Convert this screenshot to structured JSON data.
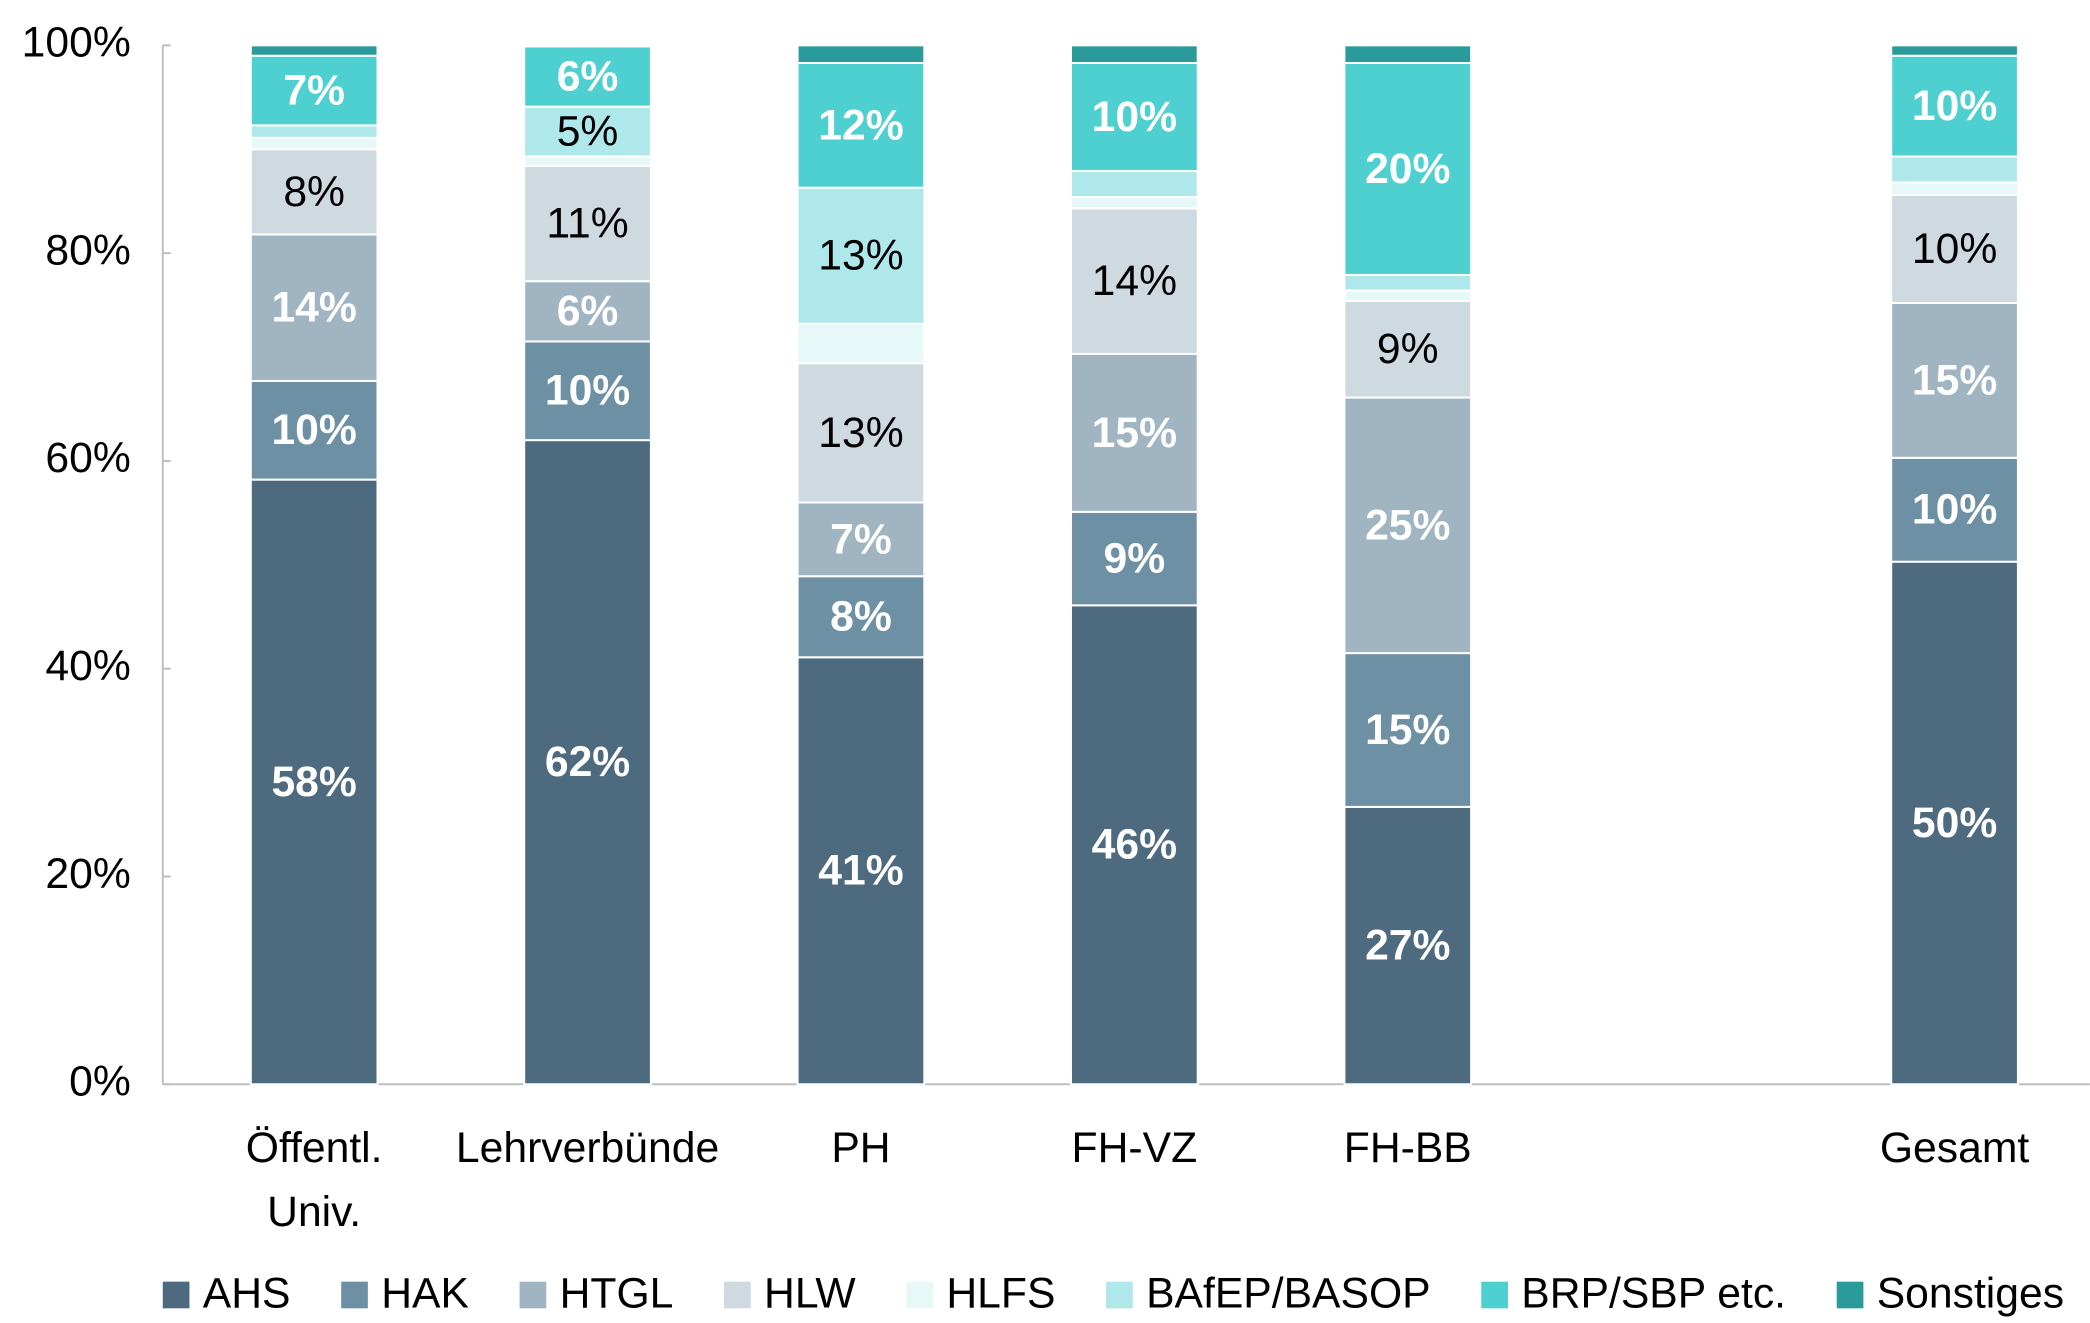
{
  "chart_data": {
    "type": "stacked_bar",
    "categories": [
      "Öffentl. Univ.",
      "Lehrverbünde",
      "PH",
      "FH-VZ",
      "FH-BB",
      null,
      "Gesamt"
    ],
    "ylim": [
      0,
      100
    ],
    "yticks": [
      {
        "value": 0,
        "label": "0%"
      },
      {
        "value": 20,
        "label": "20%"
      },
      {
        "value": 40,
        "label": "40%"
      },
      {
        "value": 60,
        "label": "60%"
      },
      {
        "value": 80,
        "label": "80%"
      },
      {
        "value": 100,
        "label": "100%"
      }
    ],
    "grid": false,
    "legend": "bottom",
    "series": [
      {
        "name": "AHS",
        "color": "#4d6a7e",
        "values": [
          58.2,
          62.0,
          41.1,
          46.1,
          26.7,
          null,
          50.3
        ],
        "value_labels": [
          "58%",
          "62%",
          "41%",
          "46%",
          "27%",
          null,
          "50%"
        ]
      },
      {
        "name": "HAK",
        "color": "#6e90a4",
        "values": [
          9.5,
          9.5,
          7.8,
          9.0,
          14.8,
          null,
          10.0
        ],
        "value_labels": [
          "10%",
          "10%",
          "8%",
          "9%",
          "15%",
          null,
          "10%"
        ]
      },
      {
        "name": "HTGL",
        "color": "#a0b4c2",
        "values": [
          14.1,
          5.8,
          7.1,
          15.2,
          24.6,
          null,
          14.9
        ],
        "value_labels": [
          "14%",
          "6%",
          "7%",
          "15%",
          "25%",
          null,
          "15%"
        ]
      },
      {
        "name": "HLW",
        "color": "#cfd9e0",
        "values": [
          8.2,
          11.1,
          13.4,
          14.0,
          9.3,
          null,
          10.4
        ],
        "value_labels": [
          "8%",
          "11%",
          "13%",
          "14%",
          "9%",
          null,
          "10%"
        ]
      },
      {
        "name": "HLFS",
        "color": "#e6f8f8",
        "values": [
          1.1,
          0.9,
          3.8,
          1.1,
          1.0,
          null,
          1.2
        ]
      },
      {
        "name": "BAfEP/BASOP",
        "color": "#aee8ea",
        "values": [
          1.2,
          4.8,
          13.1,
          2.5,
          1.5,
          null,
          2.5
        ],
        "value_labels": [
          null,
          "5%",
          "13%",
          null,
          null,
          null,
          null
        ]
      },
      {
        "name": "BRP/SBP etc.",
        "color": "#4ecfd0",
        "values": [
          6.7,
          5.8,
          12.0,
          10.4,
          20.4,
          null,
          9.7
        ],
        "value_labels": [
          "7%",
          "6%",
          "12%",
          "10%",
          "20%",
          null,
          "10%"
        ]
      },
      {
        "name": "Sonstiges",
        "color": "#2a9a9a",
        "values": [
          1.0,
          0.1,
          1.7,
          1.7,
          1.7,
          null,
          1.0
        ]
      }
    ]
  }
}
